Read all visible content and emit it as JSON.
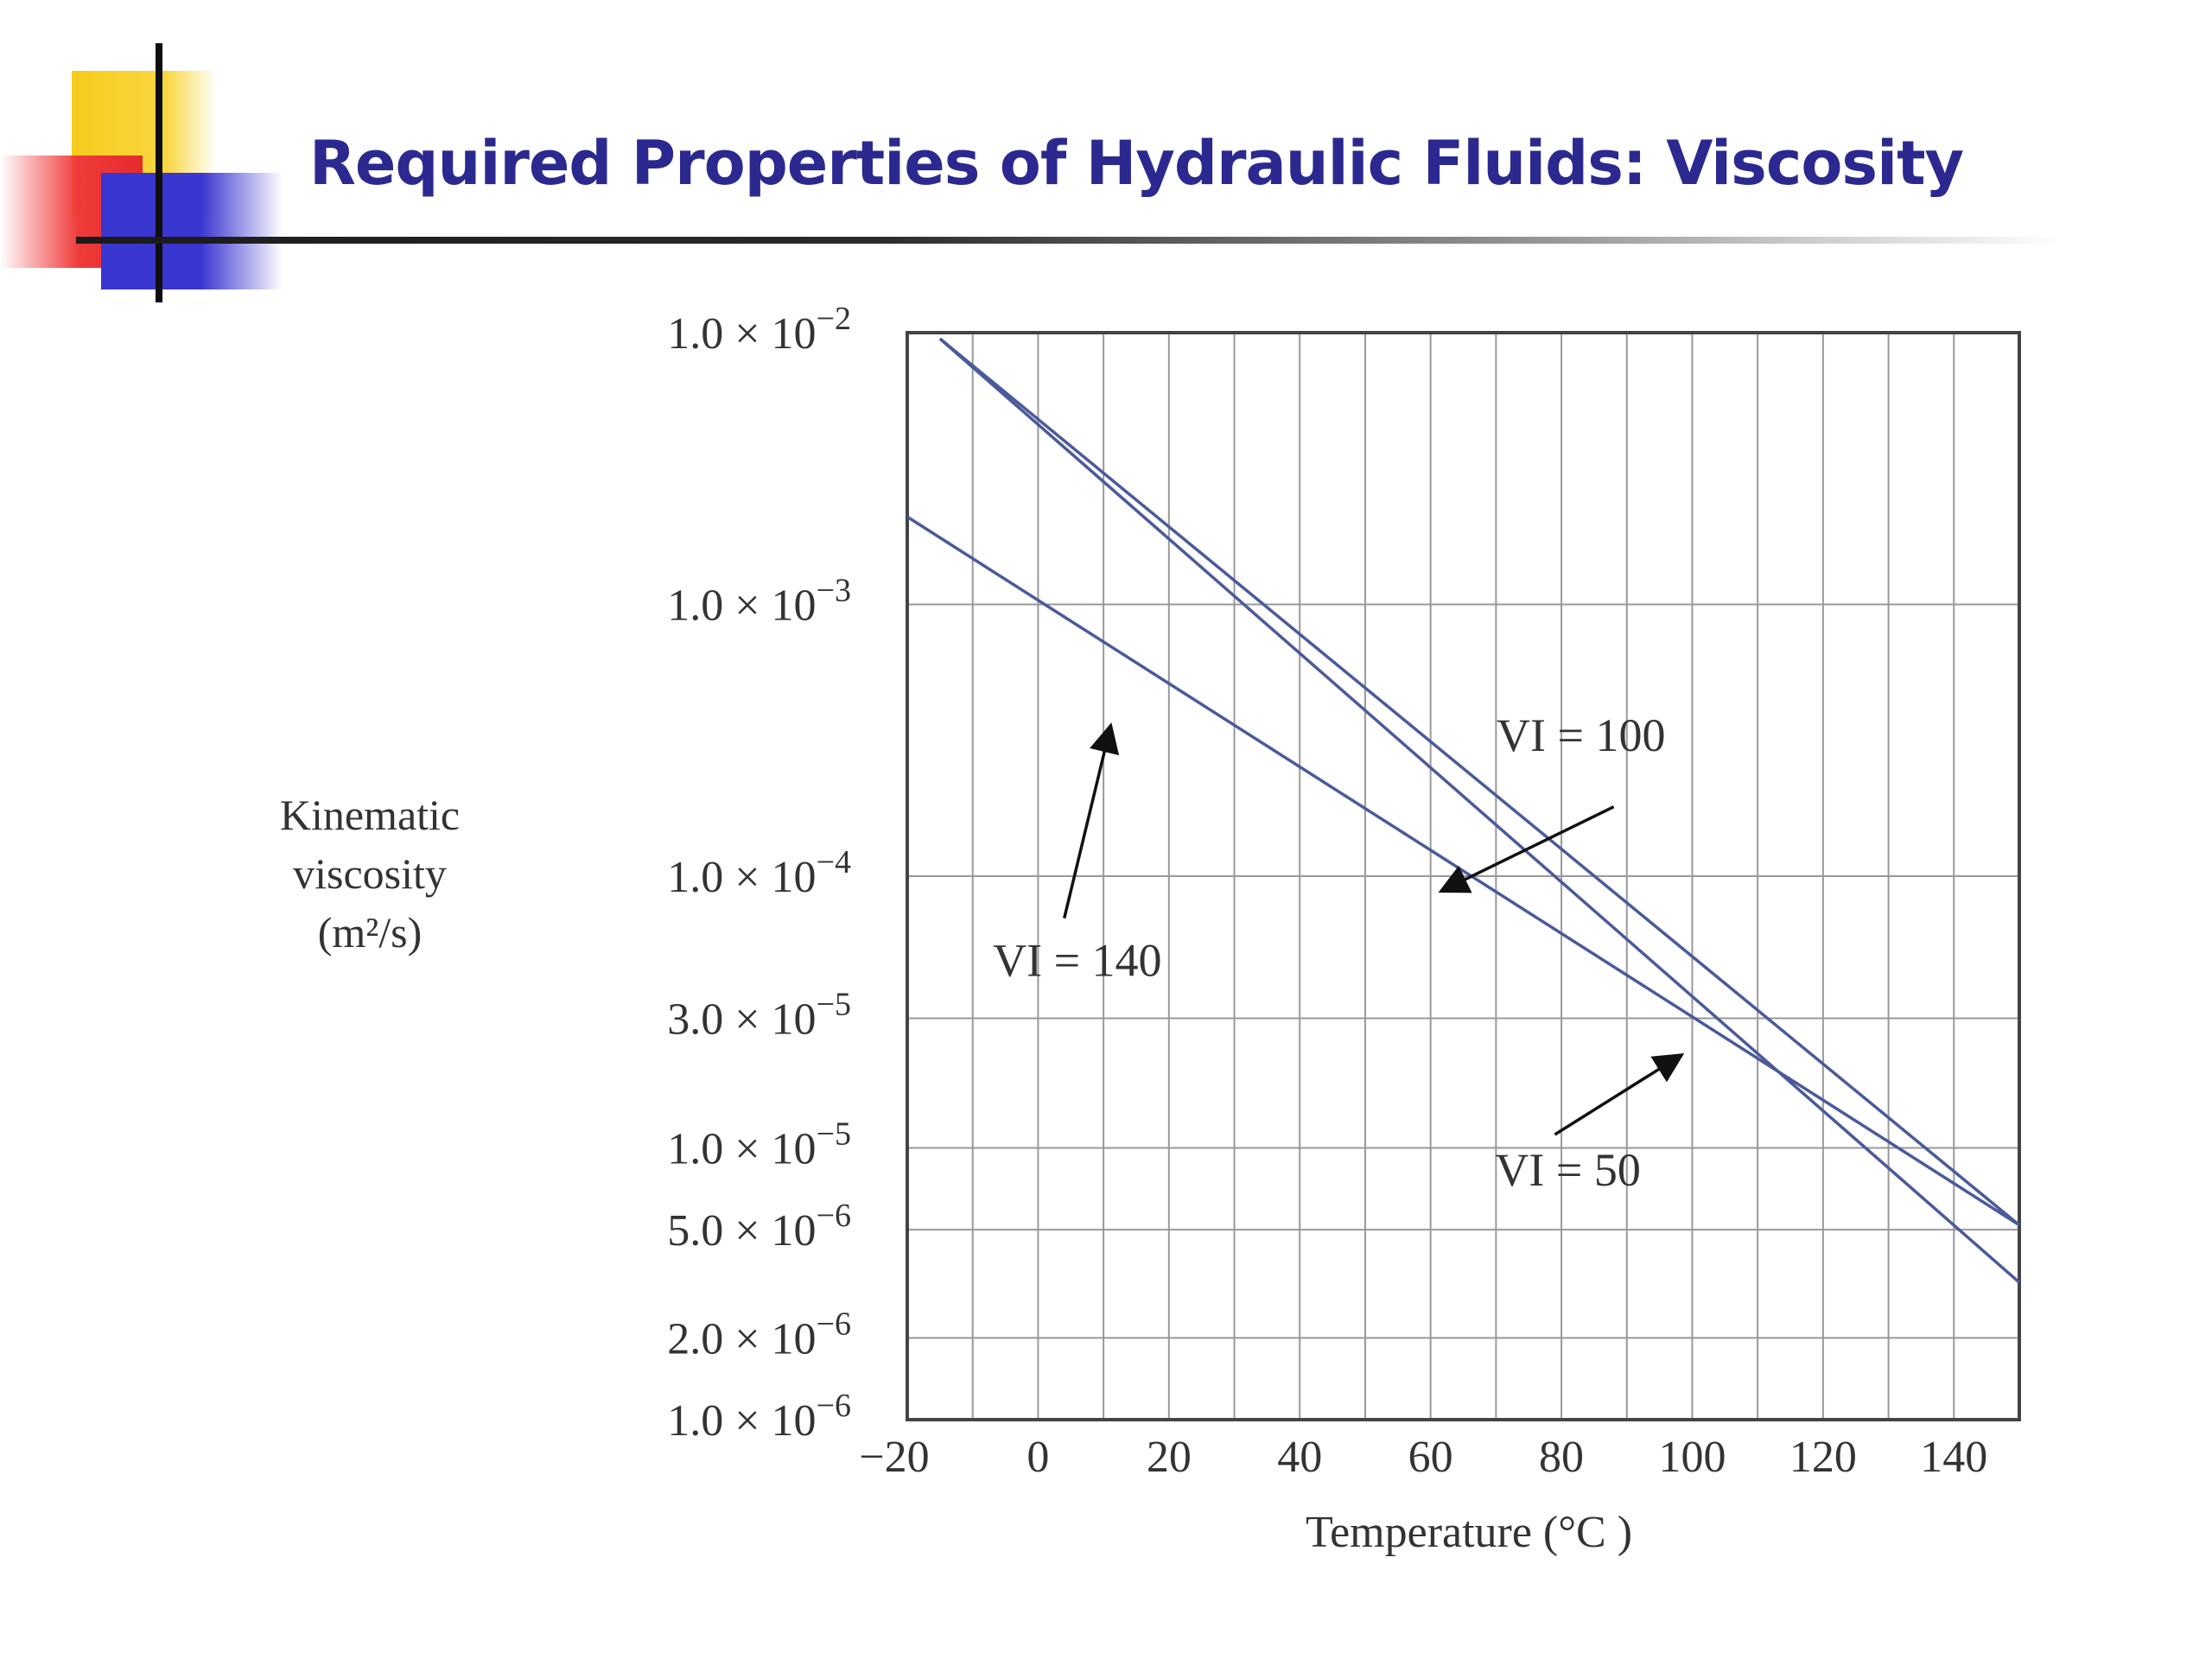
{
  "slide": {
    "title": "Required Properties of Hydraulic Fluids: Viscosity"
  },
  "colors": {
    "title": "#2b2990",
    "curve": "#4a5a9a",
    "grid": "#999999",
    "axis": "#444444"
  },
  "chart_data": {
    "type": "line",
    "title": "",
    "xlabel": "Temperature (°C )",
    "ylabel": "Kinematic viscosity (m²/s)",
    "xlim": [
      -20,
      150
    ],
    "ylim": [
      1e-06,
      0.01
    ],
    "yscale": "log",
    "grid": true,
    "x_ticks": [
      {
        "value": -20,
        "label": "−20"
      },
      {
        "value": 0,
        "label": "0"
      },
      {
        "value": 20,
        "label": "20"
      },
      {
        "value": 40,
        "label": "40"
      },
      {
        "value": 60,
        "label": "60"
      },
      {
        "value": 80,
        "label": "80"
      },
      {
        "value": 100,
        "label": "100"
      },
      {
        "value": 120,
        "label": "120"
      },
      {
        "value": 140,
        "label": "140"
      }
    ],
    "y_ticks": [
      {
        "value": 0.01,
        "mant": "1.0",
        "exp": "−2"
      },
      {
        "value": 0.001,
        "mant": "1.0",
        "exp": "−3"
      },
      {
        "value": 0.0001,
        "mant": "1.0",
        "exp": "−4"
      },
      {
        "value": 3e-05,
        "mant": "3.0",
        "exp": "−5"
      },
      {
        "value": 1e-05,
        "mant": "1.0",
        "exp": "−5"
      },
      {
        "value": 5e-06,
        "mant": "5.0",
        "exp": "−6"
      },
      {
        "value": 2e-06,
        "mant": "2.0",
        "exp": "−6"
      },
      {
        "value": 1e-06,
        "mant": "1.0",
        "exp": "−6"
      }
    ],
    "series": [
      {
        "name": "VI = 50",
        "x": [
          -15,
          150
        ],
        "y": [
          0.0095,
          3.2e-06
        ]
      },
      {
        "name": "VI = 100",
        "x": [
          -15,
          150
        ],
        "y": [
          0.0095,
          5.2e-06
        ]
      },
      {
        "name": "VI = 140",
        "x": [
          -20,
          150
        ],
        "y": [
          0.0021,
          5.2e-06
        ]
      }
    ],
    "annotations": [
      {
        "label": "VI = 100",
        "series": "VI = 100",
        "text_x": 83,
        "text_y": 0.00033,
        "arrow_from_x": 88,
        "arrow_from_y": 0.00018,
        "arrow_to_x": 62,
        "arrow_to_y": 8.9e-05
      },
      {
        "label": "VI = 140",
        "series": "VI = 140",
        "text_x": 6,
        "text_y": 4.9e-05,
        "arrow_from_x": 4,
        "arrow_from_y": 7e-05,
        "arrow_to_x": 11,
        "arrow_to_y": 0.00035
      },
      {
        "label": "VI = 50",
        "series": "VI = 50",
        "text_x": 81,
        "text_y": 8.3e-06,
        "arrow_from_x": 79,
        "arrow_from_y": 1.12e-05,
        "arrow_to_x": 98,
        "arrow_to_y": 2.17e-05
      }
    ]
  }
}
